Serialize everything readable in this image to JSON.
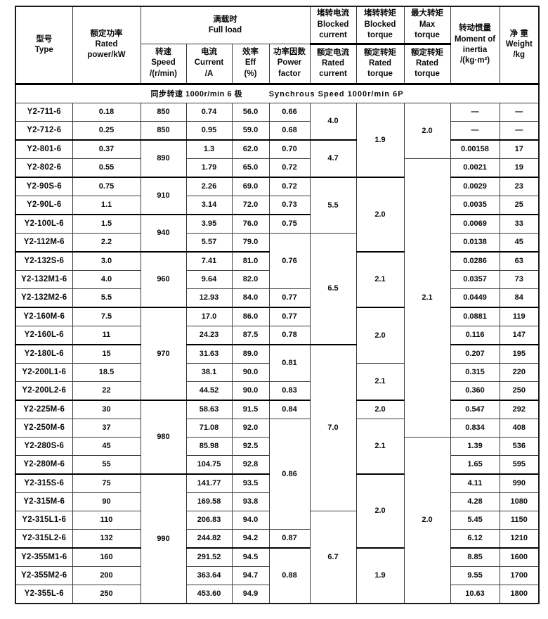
{
  "header": {
    "type": "型号\nType",
    "power": "额定功率\nRated\npower/kW",
    "full_load": "满载时\nFull load",
    "speed": "转速\nSpeed\n/(r/min)",
    "current": "电流\nCurrent\n/A",
    "eff": "效率\nEff\n(%)",
    "pf": "功率因数\nPower\nfactor",
    "blocked_current_top": "堵转电流\nBlocked\ncurrent",
    "blocked_current_bottom": "额定电流\nRated\ncurrent",
    "blocked_torque_top": "堵转转矩\nBlocked\ntorque",
    "blocked_torque_bottom": "额定转矩\nRated\ntorque",
    "max_torque_top": "最大转矩\nMax\ntorque",
    "max_torque_bottom": "额定转矩\nRated\ntorque",
    "inertia": "转动惯量\nMoment of\ninertia\n/(kg·m²)",
    "weight": "净 重\nWeight\n/kg"
  },
  "section": {
    "cn": "同步转速 1000r/min 6 极",
    "en": "Synchrous Speed 1000r/min 6P"
  },
  "table": {
    "row_count": 27,
    "group_end_rows": [
      2,
      4,
      6,
      8,
      11,
      13,
      16,
      20,
      24
    ],
    "columns": [
      {
        "key": "type",
        "cells": [
          "Y2-711-6",
          "Y2-712-6",
          "Y2-801-6",
          "Y2-802-6",
          "Y2-90S-6",
          "Y2-90L-6",
          "Y2-100L-6",
          "Y2-112M-6",
          "Y2-132S-6",
          "Y2-132M1-6",
          "Y2-132M2-6",
          "Y2-160M-6",
          "Y2-160L-6",
          "Y2-180L-6",
          "Y2-200L1-6",
          "Y2-200L2-6",
          "Y2-225M-6",
          "Y2-250M-6",
          "Y2-280S-6",
          "Y2-280M-6",
          "Y2-315S-6",
          "Y2-315M-6",
          "Y2-315L1-6",
          "Y2-315L2-6",
          "Y2-355M1-6",
          "Y2-355M2-6",
          "Y2-355L-6"
        ]
      },
      {
        "key": "power",
        "cells": [
          "0.18",
          "0.25",
          "0.37",
          "0.55",
          "0.75",
          "1.1",
          "1.5",
          "2.2",
          "3.0",
          "4.0",
          "5.5",
          "7.5",
          "11",
          "15",
          "18.5",
          "22",
          "30",
          "37",
          "45",
          "55",
          "75",
          "90",
          "110",
          "132",
          "160",
          "200",
          "250"
        ]
      },
      {
        "key": "speed",
        "cells": [
          [
            "850",
            1
          ],
          [
            "850",
            1
          ],
          [
            "890",
            2
          ],
          [
            "910",
            2
          ],
          [
            "940",
            2
          ],
          [
            "960",
            3
          ],
          [
            "970",
            5
          ],
          [
            "980",
            4
          ],
          [
            "990",
            7
          ]
        ]
      },
      {
        "key": "current",
        "cells": [
          "0.74",
          "0.95",
          "1.3",
          "1.79",
          "2.26",
          "3.14",
          "3.95",
          "5.57",
          "7.41",
          "9.64",
          "12.93",
          "17.0",
          "24.23",
          "31.63",
          "38.1",
          "44.52",
          "58.63",
          "71.08",
          "85.98",
          "104.75",
          "141.77",
          "169.58",
          "206.83",
          "244.82",
          "291.52",
          "363.64",
          "453.60"
        ]
      },
      {
        "key": "eff",
        "cells": [
          "56.0",
          "59.0",
          "62.0",
          "65.0",
          "69.0",
          "72.0",
          "76.0",
          "79.0",
          "81.0",
          "82.0",
          "84.0",
          "86.0",
          "87.5",
          "89.0",
          "90.0",
          "90.0",
          "91.5",
          "92.0",
          "92.5",
          "92.8",
          "93.5",
          "93.8",
          "94.0",
          "94.2",
          "94.5",
          "94.7",
          "94.9"
        ]
      },
      {
        "key": "pf",
        "cells": [
          [
            "0.66",
            1
          ],
          [
            "0.68",
            1
          ],
          [
            "0.70",
            1
          ],
          [
            "0.72",
            1
          ],
          [
            "0.72",
            1
          ],
          [
            "0.73",
            1
          ],
          [
            "0.75",
            1
          ],
          [
            "0.76",
            3
          ],
          [
            "0.77",
            1
          ],
          [
            "0.77",
            1
          ],
          [
            "0.78",
            1
          ],
          [
            "0.81",
            2
          ],
          [
            "0.83",
            1
          ],
          [
            "0.84",
            1
          ],
          [
            "0.86",
            6
          ],
          [
            "0.87",
            1
          ],
          [
            "0.88",
            3
          ]
        ]
      },
      {
        "key": "blocked_current",
        "cells": [
          [
            "4.0",
            2
          ],
          [
            "4.7",
            2
          ],
          [
            "5.5",
            3
          ],
          [
            "6.5",
            6
          ],
          [
            "7.0",
            9
          ],
          [
            "6.7",
            5
          ]
        ]
      },
      {
        "key": "blocked_torque",
        "cells": [
          [
            "1.9",
            4
          ],
          [
            "2.0",
            4
          ],
          [
            "2.1",
            3
          ],
          [
            "2.0",
            3
          ],
          [
            "2.1",
            2
          ],
          [
            "2.0",
            1
          ],
          [
            "2.1",
            3
          ],
          [
            "2.0",
            4
          ],
          [
            "1.9",
            3
          ]
        ]
      },
      {
        "key": "max_torque",
        "cells": [
          [
            "2.0",
            3
          ],
          [
            "2.1",
            15
          ],
          [
            "2.0",
            9
          ]
        ]
      },
      {
        "key": "inertia",
        "cells": [
          "—",
          "—",
          "0.00158",
          "0.0021",
          "0.0029",
          "0.0035",
          "0.0069",
          "0.0138",
          "0.0286",
          "0.0357",
          "0.0449",
          "0.0881",
          "0.116",
          "0.207",
          "0.315",
          "0.360",
          "0.547",
          "0.834",
          "1.39",
          "1.65",
          "4.11",
          "4.28",
          "5.45",
          "6.12",
          "8.85",
          "9.55",
          "10.63"
        ]
      },
      {
        "key": "weight",
        "cells": [
          "—",
          "—",
          "17",
          "19",
          "23",
          "25",
          "33",
          "45",
          "63",
          "73",
          "84",
          "119",
          "147",
          "195",
          "220",
          "250",
          "292",
          "408",
          "536",
          "595",
          "990",
          "1080",
          "1150",
          "1210",
          "1600",
          "1700",
          "1800"
        ]
      }
    ]
  }
}
